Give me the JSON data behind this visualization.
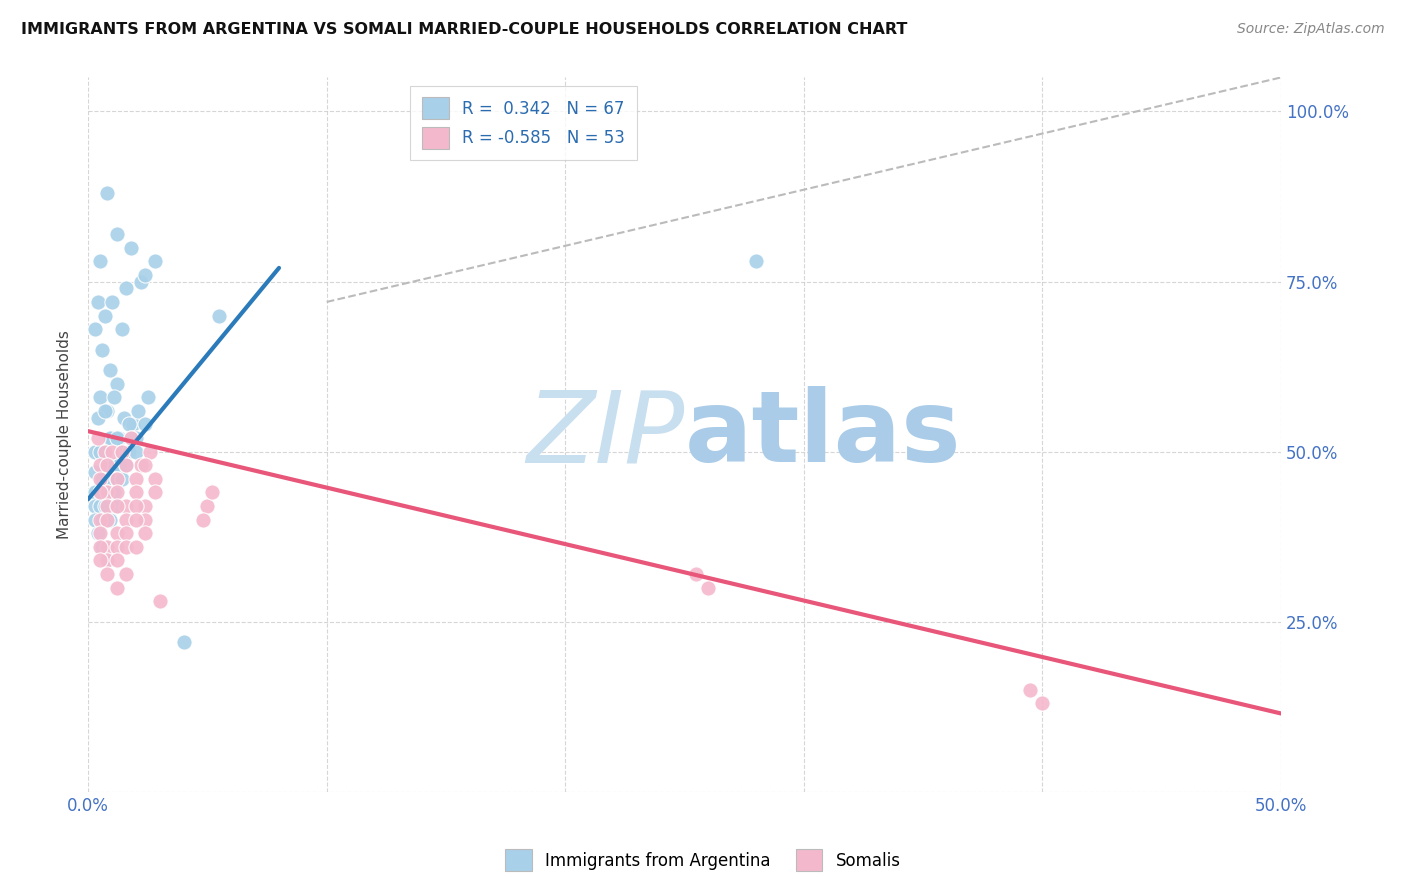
{
  "title": "IMMIGRANTS FROM ARGENTINA VS SOMALI MARRIED-COUPLE HOUSEHOLDS CORRELATION CHART",
  "source": "Source: ZipAtlas.com",
  "ylabel": "Married-couple Households",
  "legend_label_blue": "Immigrants from Argentina",
  "legend_label_pink": "Somalis",
  "blue_color": "#a8d0e8",
  "pink_color": "#f4b8cc",
  "blue_line_color": "#2b7bba",
  "pink_line_color": "#e8577a",
  "dashed_line_color": "#bbbbbb",
  "watermark_zip": "ZIP",
  "watermark_atlas": "atlas",
  "watermark_zip_color": "#c8dff0",
  "watermark_atlas_color": "#aacce8",
  "blue_R": 0.342,
  "blue_N": 67,
  "pink_R": -0.585,
  "pink_N": 53,
  "blue_scatter_x": [
    0.008,
    0.012,
    0.005,
    0.018,
    0.022,
    0.016,
    0.028,
    0.024,
    0.004,
    0.007,
    0.01,
    0.014,
    0.006,
    0.003,
    0.009,
    0.012,
    0.005,
    0.008,
    0.011,
    0.015,
    0.019,
    0.004,
    0.007,
    0.01,
    0.013,
    0.017,
    0.021,
    0.025,
    0.004,
    0.006,
    0.009,
    0.012,
    0.016,
    0.02,
    0.024,
    0.003,
    0.005,
    0.008,
    0.011,
    0.014,
    0.018,
    0.003,
    0.006,
    0.009,
    0.013,
    0.017,
    0.003,
    0.005,
    0.008,
    0.012,
    0.016,
    0.02,
    0.003,
    0.005,
    0.007,
    0.011,
    0.014,
    0.003,
    0.006,
    0.009,
    0.012,
    0.004,
    0.006,
    0.008,
    0.055,
    0.28,
    0.04
  ],
  "blue_scatter_y": [
    0.88,
    0.82,
    0.78,
    0.8,
    0.75,
    0.74,
    0.78,
    0.76,
    0.72,
    0.7,
    0.72,
    0.68,
    0.65,
    0.68,
    0.62,
    0.6,
    0.58,
    0.56,
    0.58,
    0.55,
    0.54,
    0.55,
    0.56,
    0.52,
    0.52,
    0.54,
    0.56,
    0.58,
    0.5,
    0.5,
    0.52,
    0.52,
    0.5,
    0.52,
    0.54,
    0.5,
    0.5,
    0.48,
    0.48,
    0.5,
    0.52,
    0.47,
    0.46,
    0.46,
    0.48,
    0.5,
    0.44,
    0.44,
    0.44,
    0.46,
    0.48,
    0.5,
    0.42,
    0.42,
    0.42,
    0.44,
    0.46,
    0.4,
    0.4,
    0.4,
    0.42,
    0.38,
    0.36,
    0.34,
    0.7,
    0.78,
    0.22
  ],
  "pink_scatter_x": [
    0.004,
    0.007,
    0.01,
    0.014,
    0.018,
    0.022,
    0.026,
    0.005,
    0.008,
    0.012,
    0.016,
    0.02,
    0.024,
    0.028,
    0.005,
    0.008,
    0.012,
    0.016,
    0.02,
    0.024,
    0.028,
    0.005,
    0.008,
    0.012,
    0.016,
    0.02,
    0.024,
    0.005,
    0.008,
    0.012,
    0.016,
    0.02,
    0.024,
    0.005,
    0.008,
    0.012,
    0.016,
    0.02,
    0.005,
    0.008,
    0.012,
    0.016,
    0.005,
    0.008,
    0.012,
    0.05,
    0.052,
    0.048,
    0.255,
    0.26,
    0.395,
    0.4,
    0.03
  ],
  "pink_scatter_y": [
    0.52,
    0.5,
    0.5,
    0.5,
    0.52,
    0.48,
    0.5,
    0.48,
    0.48,
    0.46,
    0.48,
    0.46,
    0.48,
    0.46,
    0.46,
    0.44,
    0.44,
    0.42,
    0.44,
    0.42,
    0.44,
    0.44,
    0.42,
    0.42,
    0.4,
    0.42,
    0.4,
    0.4,
    0.4,
    0.38,
    0.38,
    0.4,
    0.38,
    0.38,
    0.36,
    0.36,
    0.36,
    0.36,
    0.36,
    0.34,
    0.34,
    0.32,
    0.34,
    0.32,
    0.3,
    0.42,
    0.44,
    0.4,
    0.32,
    0.3,
    0.15,
    0.13,
    0.28
  ],
  "xlim": [
    0.0,
    0.5
  ],
  "ylim": [
    0.0,
    1.05
  ],
  "blue_line_x": [
    0.0,
    0.08
  ],
  "blue_line_y": [
    0.43,
    0.77
  ],
  "pink_line_x": [
    0.0,
    0.5
  ],
  "pink_line_y": [
    0.53,
    0.115
  ],
  "dash_line_x": [
    0.1,
    0.5
  ],
  "dash_line_y": [
    0.72,
    1.05
  ],
  "right_ytick_vals": [
    0.25,
    0.5,
    0.75,
    1.0
  ],
  "right_ytick_labels": [
    "25.0%",
    "50.0%",
    "75.0%",
    "100.0%"
  ],
  "xtick_vals": [
    0.0,
    0.1,
    0.2,
    0.3,
    0.4,
    0.5
  ],
  "xtick_color": "#4472c4",
  "right_ytick_color": "#4472c4",
  "grid_color": "#cccccc"
}
